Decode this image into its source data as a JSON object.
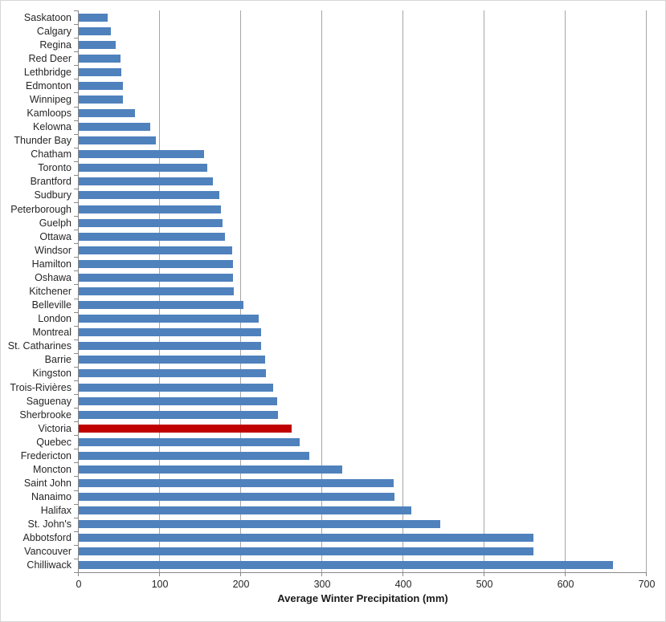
{
  "chart_data": {
    "type": "bar",
    "orientation": "horizontal",
    "xlabel": "Average Winter Precipitation (mm)",
    "xlim": [
      0,
      700
    ],
    "x_ticks": [
      0,
      100,
      200,
      300,
      400,
      500,
      600,
      700
    ],
    "grid": "vertical-on",
    "legend": "none",
    "categories": [
      "Saskatoon",
      "Calgary",
      "Regina",
      "Red Deer",
      "Lethbridge",
      "Edmonton",
      "Winnipeg",
      "Kamloops",
      "Kelowna",
      "Thunder Bay",
      "Chatham",
      "Toronto",
      "Brantford",
      "Sudbury",
      "Peterborough",
      "Guelph",
      "Ottawa",
      "Windsor",
      "Hamilton",
      "Oshawa",
      "Kitchener",
      "Belleville",
      "London",
      "Montreal",
      "St. Catharines",
      "Barrie",
      "Kingston",
      "Trois-Rivières",
      "Saguenay",
      "Sherbrooke",
      "Victoria",
      "Quebec",
      "Fredericton",
      "Moncton",
      "Saint John",
      "Nanaimo",
      "Halifax",
      "St. John's",
      "Abbotsford",
      "Vancouver",
      "Chilliwack"
    ],
    "values": [
      36,
      40,
      46,
      51,
      52,
      54,
      54,
      69,
      88,
      95,
      154,
      158,
      165,
      173,
      175,
      177,
      180,
      189,
      190,
      190,
      191,
      203,
      222,
      225,
      225,
      230,
      231,
      240,
      245,
      246,
      262,
      272,
      284,
      325,
      388,
      389,
      410,
      446,
      560,
      560,
      658
    ],
    "highlight_category": "Victoria",
    "bar_color": "#4F81BD",
    "highlight_color": "#C00000",
    "gridline_color": "#A6A6A6",
    "axis_color": "#898989",
    "text_color": "#262626"
  }
}
